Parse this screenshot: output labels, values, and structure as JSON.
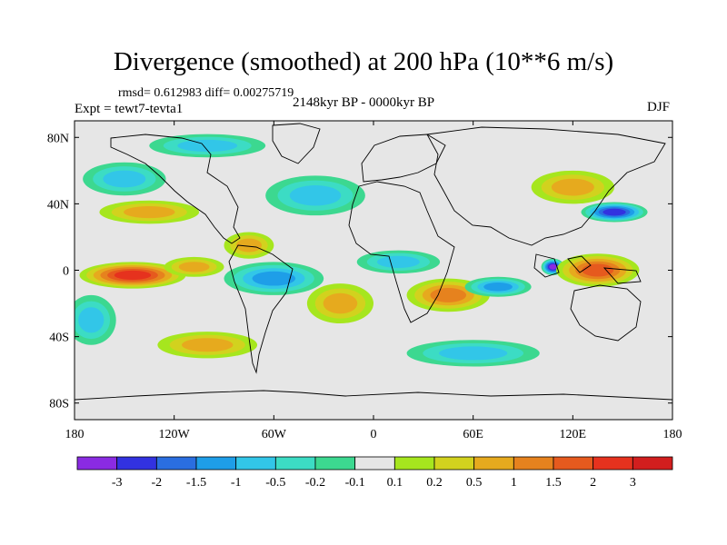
{
  "chart_data": {
    "type": "heatmap",
    "title": "Divergence (smoothed) at 200 hPa (10**6 m/s)",
    "stats": "rmsd= 0.612983 diff= 0.00275719",
    "experiment": "Expt = tewt7-tevta1",
    "period": "2148kyr BP - 0000kyr BP",
    "season": "DJF",
    "xlim": [
      -180,
      180
    ],
    "ylim": [
      -90,
      90
    ],
    "x_ticks": [
      {
        "value": -180,
        "label": "180"
      },
      {
        "value": -120,
        "label": "120W"
      },
      {
        "value": -60,
        "label": "60W"
      },
      {
        "value": 0,
        "label": "0"
      },
      {
        "value": 60,
        "label": "60E"
      },
      {
        "value": 120,
        "label": "120E"
      },
      {
        "value": 180,
        "label": "180"
      }
    ],
    "y_ticks": [
      {
        "value": 80,
        "label": "80N"
      },
      {
        "value": 40,
        "label": "40N"
      },
      {
        "value": 0,
        "label": "0"
      },
      {
        "value": -40,
        "label": "40S"
      },
      {
        "value": -80,
        "label": "80S"
      }
    ],
    "colorbar": {
      "labels": [
        "-3",
        "-2",
        "-1.5",
        "-1",
        "-0.5",
        "-0.2",
        "-0.1",
        "0.1",
        "0.2",
        "0.5",
        "1",
        "1.5",
        "2",
        "3"
      ],
      "colors": [
        "#8a2be2",
        "#3232e0",
        "#2a6ee0",
        "#1e9ee8",
        "#32c6e8",
        "#3cdcc4",
        "#3cd890",
        "#e6e6e6",
        "#a6e61e",
        "#d2d21e",
        "#e6aa1e",
        "#e6821e",
        "#e65a1e",
        "#e6321e",
        "#d21e1e"
      ]
    },
    "features": [
      {
        "name": "central-pacific-divergence",
        "lon": -145,
        "lat": -3,
        "value": 2.2,
        "rx": 32,
        "ry": 8
      },
      {
        "name": "east-pacific-divergence",
        "lon": -108,
        "lat": 2,
        "value": 0.8,
        "rx": 18,
        "ry": 6
      },
      {
        "name": "north-pacific-positive",
        "lon": -135,
        "lat": 35,
        "value": 0.6,
        "rx": 30,
        "ry": 7
      },
      {
        "name": "north-pacific-negative",
        "lon": -150,
        "lat": 55,
        "value": -0.6,
        "rx": 25,
        "ry": 10
      },
      {
        "name": "north-atlantic-negative",
        "lon": -35,
        "lat": 45,
        "value": -0.8,
        "rx": 30,
        "ry": 12
      },
      {
        "name": "caribbean-positive",
        "lon": -75,
        "lat": 15,
        "value": 0.8,
        "rx": 15,
        "ry": 8
      },
      {
        "name": "tropical-atlantic-negative",
        "lon": -60,
        "lat": -5,
        "value": -1.0,
        "rx": 30,
        "ry": 10
      },
      {
        "name": "south-atlantic-positive",
        "lon": -20,
        "lat": -20,
        "value": 0.7,
        "rx": 20,
        "ry": 12
      },
      {
        "name": "africa-negative",
        "lon": 15,
        "lat": 5,
        "value": -0.8,
        "rx": 25,
        "ry": 7
      },
      {
        "name": "indian-ocean-positive",
        "lon": 45,
        "lat": -15,
        "value": 1.2,
        "rx": 25,
        "ry": 10
      },
      {
        "name": "indian-ocean-negative",
        "lon": 75,
        "lat": -10,
        "value": -1.2,
        "rx": 20,
        "ry": 6
      },
      {
        "name": "maritime-convergence",
        "lon": 108,
        "lat": 2,
        "value": -3.0,
        "rx": 7,
        "ry": 5
      },
      {
        "name": "west-pacific-divergence",
        "lon": 135,
        "lat": 0,
        "value": 1.8,
        "rx": 25,
        "ry": 10
      },
      {
        "name": "subtropical-jet-negative",
        "lon": 145,
        "lat": 35,
        "value": -2.2,
        "rx": 20,
        "ry": 6
      },
      {
        "name": "asia-positive",
        "lon": 120,
        "lat": 50,
        "value": 0.6,
        "rx": 25,
        "ry": 10
      },
      {
        "name": "arctic-negative",
        "lon": -100,
        "lat": 75,
        "value": -0.6,
        "rx": 35,
        "ry": 7
      },
      {
        "name": "southern-ocean-positive",
        "lon": -100,
        "lat": -45,
        "value": 0.6,
        "rx": 30,
        "ry": 8
      },
      {
        "name": "southern-ocean-negative",
        "lon": 60,
        "lat": -50,
        "value": -0.6,
        "rx": 40,
        "ry": 8
      },
      {
        "name": "south-pacific-negative",
        "lon": -170,
        "lat": -30,
        "value": -0.8,
        "rx": 15,
        "ry": 15
      }
    ]
  }
}
